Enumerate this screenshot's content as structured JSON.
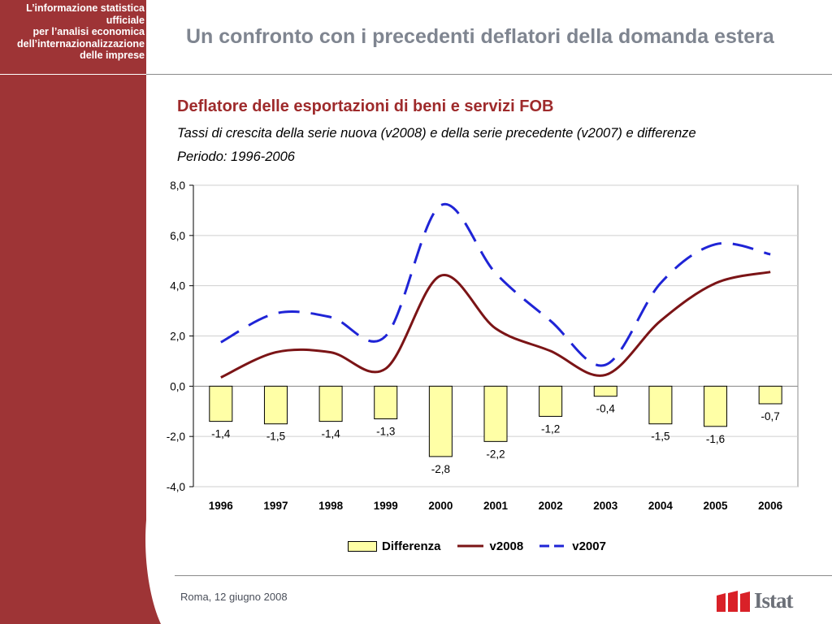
{
  "sidebar": {
    "lines": [
      "L’informazione statistica",
      "ufficiale",
      "per l’analisi economica",
      "dell’internazionalizzazione",
      "delle imprese"
    ],
    "color": "#9e3436"
  },
  "header": {
    "title": "Un confronto con i precedenti deflatori della domanda estera"
  },
  "chart_data": {
    "type": "bar",
    "title": "Deflatore delle esportazioni di beni e servizi FOB",
    "subtitle": "Tassi di crescita della serie nuova (v2008) e della serie precedente (v2007) e differenze",
    "period": "Periodo: 1996-2006",
    "categories": [
      "1996",
      "1997",
      "1998",
      "1999",
      "2000",
      "2001",
      "2002",
      "2003",
      "2004",
      "2005",
      "2006"
    ],
    "ylim": [
      -4,
      8
    ],
    "yticks": [
      8,
      6,
      4,
      2,
      0,
      -2,
      -4
    ],
    "ytick_labels": [
      "8,0",
      "6,0",
      "4,0",
      "2,0",
      "0,0",
      "-2,0",
      "-4,0"
    ],
    "grid": true,
    "legend_position": "bottom",
    "series": [
      {
        "name": "Differenza",
        "kind": "bar",
        "color": "#ffffa6",
        "values": [
          -1.4,
          -1.5,
          -1.4,
          -1.3,
          -2.8,
          -2.2,
          -1.2,
          -0.4,
          -1.5,
          -1.6,
          -0.7
        ],
        "labels": [
          "-1,4",
          "-1,5",
          "-1,4",
          "-1,3",
          "-2,8",
          "-2,2",
          "-1,2",
          "-0,4",
          "-1,5",
          "-1,6",
          "-0,7"
        ]
      },
      {
        "name": "v2008",
        "kind": "line",
        "color": "#7b1416",
        "dash": "solid",
        "values": [
          0.35,
          1.35,
          1.35,
          0.7,
          4.4,
          2.3,
          1.4,
          0.45,
          2.6,
          4.1,
          4.55
        ]
      },
      {
        "name": "v2007",
        "kind": "line",
        "color": "#1f24d6",
        "dash": "dashed",
        "values": [
          1.75,
          2.9,
          2.75,
          2.0,
          7.2,
          4.5,
          2.6,
          0.85,
          4.1,
          5.65,
          5.25
        ]
      }
    ]
  },
  "footer": {
    "date": "Roma, 12 giugno 2008",
    "logo_text": "Istat"
  }
}
